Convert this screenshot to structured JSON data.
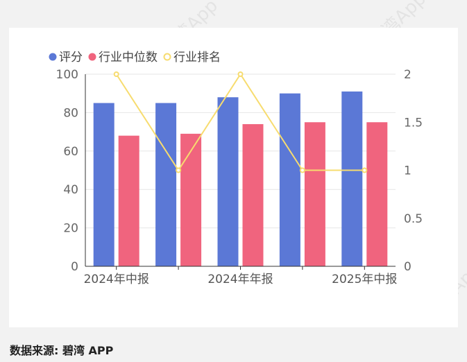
{
  "source_label": "数据来源: 碧湾 APP",
  "watermark": "碧湾App",
  "colors": {
    "score": "#5b78d6",
    "median": "#f0647e",
    "rank": "#f7dc6f"
  },
  "chart_data": {
    "type": "bar",
    "categories": [
      "2024年中报",
      "",
      "2024年年报",
      "",
      "2025年中报"
    ],
    "x_tick_labels": [
      "2024年中报",
      "2024年年报",
      "2025年中报"
    ],
    "legend_position": "top-left",
    "series": [
      {
        "name": "评分",
        "type": "bar",
        "axis": "left",
        "values": [
          85,
          85,
          88,
          90,
          91
        ]
      },
      {
        "name": "行业中位数",
        "type": "bar",
        "axis": "left",
        "values": [
          68,
          69,
          74,
          75,
          75
        ]
      },
      {
        "name": "行业排名",
        "type": "line",
        "axis": "right",
        "values": [
          2,
          1,
          2,
          1,
          1
        ]
      }
    ],
    "y_left": {
      "min": 0,
      "max": 100,
      "ticks": [
        "0",
        "20",
        "40",
        "60",
        "80",
        "100"
      ]
    },
    "y_right": {
      "min": 0,
      "max": 2,
      "ticks": [
        "0",
        "0.5",
        "1",
        "1.5",
        "2"
      ]
    },
    "grid": true
  }
}
